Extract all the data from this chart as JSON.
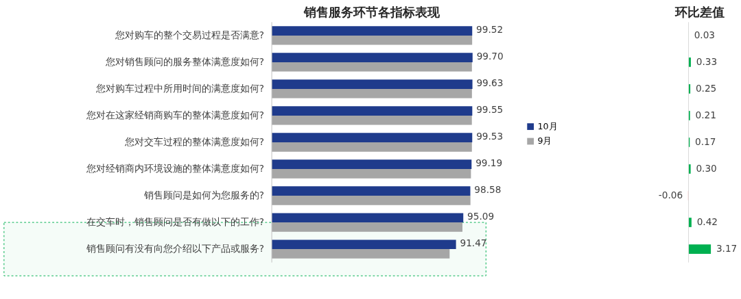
{
  "chart_data": [
    {
      "type": "bar",
      "orientation": "horizontal",
      "title": "销售服务环节各指标表现",
      "categories": [
        "您对购车的整个交易过程是否满意?",
        "您对销售顾问的服务整体满意度如何?",
        "您对购车过程中所用时间的满意度如何?",
        "您对在这家经销商购车的整体满意度如何?",
        "您对交车过程的整体满意度如何?",
        "您对经销商内环境设施的整体满意度如何?",
        "销售顾问是如何为您服务的?",
        "在交车时，销售顾问是否有做以下的工作?",
        "销售顾问有没有向您介绍以下产品或服务?"
      ],
      "series": [
        {
          "name": "10月",
          "color": "#1f3b8c",
          "values": [
            99.52,
            99.7,
            99.63,
            99.55,
            99.53,
            99.19,
            98.58,
            95.09,
            91.47
          ],
          "value_labels": [
            "99.52",
            "99.70",
            "99.63",
            "99.55",
            "99.53",
            "99.19",
            "98.58",
            "95.09",
            "91.47"
          ]
        },
        {
          "name": "9月",
          "color": "#a6a6a6",
          "values": [
            99.49,
            99.37,
            99.38,
            99.34,
            99.36,
            98.89,
            98.64,
            94.67,
            88.3
          ]
        }
      ],
      "tick_labels": "y",
      "legend": "right",
      "bands": [
        {
          "axis": "y",
          "from": "在交车时，销售顾问是否有做以下的工作?",
          "to": "销售顾问有没有向您介绍以下产品或服务?",
          "color": "#00b050"
        }
      ]
    },
    {
      "type": "bar",
      "orientation": "horizontal",
      "title": "环比差值",
      "categories": [
        null,
        null,
        null,
        null,
        null,
        null,
        null,
        null,
        null
      ],
      "values": [
        0.03,
        0.33,
        0.25,
        0.21,
        0.17,
        0.3,
        -0.06,
        0.42,
        3.17
      ],
      "colors": [
        "#00b050",
        "#00b050",
        "#00b050",
        "#00b050",
        "#00b050",
        "#00b050",
        "#ff0000",
        "#00b050",
        "#00b050"
      ],
      "value_labels": [
        "0.03",
        "0.33",
        "0.25",
        "0.21",
        "0.17",
        "0.30",
        "-0.06",
        "0.42",
        "3.17"
      ],
      "tick_labels": false
    }
  ]
}
